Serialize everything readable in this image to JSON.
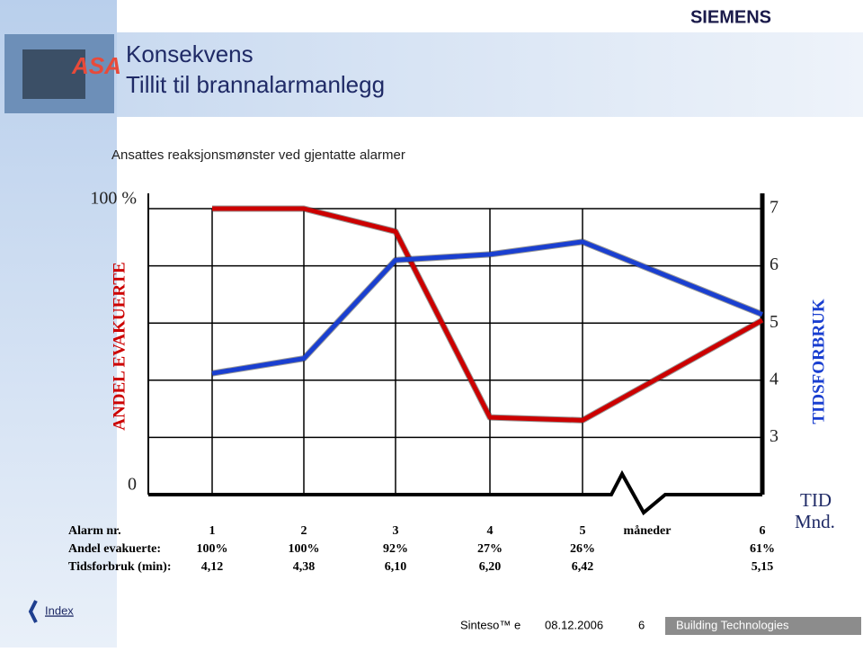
{
  "slide": {
    "logo_text": "ASA",
    "brand": "SIEMENS",
    "title": "Konsekvens",
    "subtitle": "Tillit til brannalarmanlegg",
    "index": "Index",
    "product": "Sinteso™ e",
    "date": "08.12.2006",
    "page": "6",
    "division": "Building Technologies"
  },
  "chart_data": {
    "type": "line",
    "title": "Ansattes reaksjonsmønster ved gjentatte alarmer",
    "y_label": "ANDEL EVAKUERTE",
    "y2_label": "TIDSFORBRUK",
    "x_label": "Alarm nr.",
    "annotations": [
      "måneder",
      "TID",
      "Mnd."
    ],
    "categories": [
      "1",
      "2",
      "3",
      "4",
      "5",
      "6"
    ],
    "ylim": [
      0,
      100
    ],
    "yticks": [
      0,
      {
        "value": 100,
        "label": "100 %"
      }
    ],
    "y2lim": [
      2,
      7
    ],
    "y2ticks": [
      3,
      4,
      5,
      6,
      7
    ],
    "grid": true,
    "series": [
      {
        "name": "Andel evakuerte:",
        "color": "#cc0000",
        "values": [
          100,
          100,
          92,
          27,
          26,
          61
        ],
        "value_labels": [
          "100%",
          "100%",
          "92%",
          "27%",
          "26%",
          "61%"
        ]
      },
      {
        "name": "Tidsforbruk (min):",
        "color": "#1a3fd0",
        "axis": "y2",
        "values": [
          4.12,
          4.38,
          6.1,
          6.2,
          6.42,
          5.15
        ],
        "value_labels": [
          "4,12",
          "4,38",
          "6,10",
          "6,20",
          "6,42",
          "5,15"
        ]
      }
    ]
  }
}
